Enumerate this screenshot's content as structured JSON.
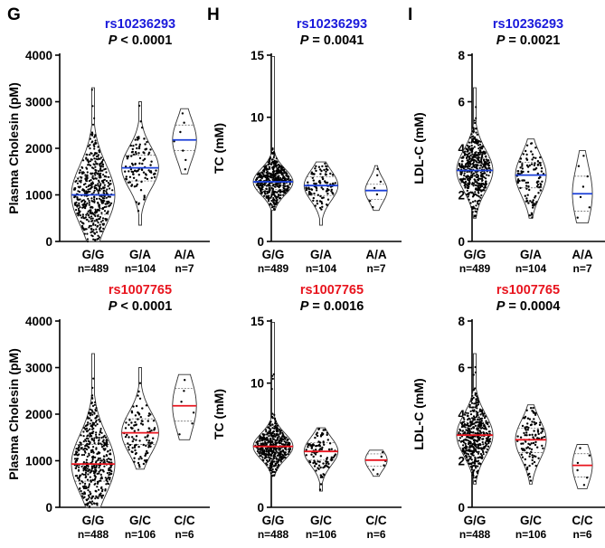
{
  "panel_letters": {
    "G": "G",
    "H": "H",
    "I": "I"
  },
  "colors": {
    "top_snp": "#1a1adb",
    "bottom_snp": "#e8141e",
    "top_median": "#1a3fd8",
    "bottom_median": "#e8141e"
  },
  "chart_data": [
    {
      "type": "violin",
      "panel": "G",
      "snp": "rs10236293",
      "snp_color": "#1a1adb",
      "p_label": "P",
      "p_text": " < 0.0001",
      "ylabel": "Plasma Cholesin (pM)",
      "ylim": [
        0,
        4000
      ],
      "yticks": [
        0,
        1000,
        2000,
        3000,
        4000
      ],
      "categories": [
        "G/G",
        "G/A",
        "A/A"
      ],
      "n_labels": [
        "n=489",
        "n=104",
        "n=7"
      ],
      "n": [
        489,
        104,
        7
      ],
      "medians": [
        1000,
        1580,
        2180
      ],
      "q1": [
        580,
        1300,
        1950
      ],
      "q3": [
        1380,
        1850,
        2500
      ],
      "mins": [
        0,
        350,
        1450
      ],
      "maxs": [
        3300,
        3000,
        2850
      ]
    },
    {
      "type": "violin",
      "panel": "H",
      "snp": "rs10236293",
      "snp_color": "#1a1adb",
      "p_label": "P",
      "p_text": " = 0.0041",
      "ylabel": "TC (mM)",
      "ylim": [
        0,
        15
      ],
      "yticks": [
        0,
        5,
        10,
        15
      ],
      "categories": [
        "G/G",
        "G/A",
        "A/A"
      ],
      "n_labels": [
        "n=489",
        "n=104",
        "n=7"
      ],
      "n": [
        489,
        104,
        7
      ],
      "medians": [
        4.8,
        4.5,
        4.1
      ],
      "q1": [
        4.2,
        3.7,
        3.4
      ],
      "q3": [
        5.5,
        5.2,
        4.6
      ],
      "mins": [
        2.5,
        1.3,
        2.5
      ],
      "maxs": [
        14.9,
        6.4,
        6.1
      ]
    },
    {
      "type": "violin",
      "panel": "I",
      "snp": "rs10236293",
      "snp_color": "#1a1adb",
      "p_label": "P",
      "p_text": " = 0.0021",
      "ylabel": "LDL-C (mM)",
      "ylim": [
        0,
        8
      ],
      "yticks": [
        0,
        2,
        4,
        6,
        8
      ],
      "categories": [
        "G/G",
        "G/A",
        "A/A"
      ],
      "n_labels": [
        "n=489",
        "n=104",
        "n=7"
      ],
      "n": [
        489,
        104,
        7
      ],
      "medians": [
        3.05,
        2.85,
        2.05
      ],
      "q1": [
        2.5,
        2.3,
        1.3
      ],
      "q3": [
        3.6,
        3.4,
        2.8
      ],
      "mins": [
        1.0,
        1.0,
        0.8
      ],
      "maxs": [
        6.6,
        4.4,
        3.9
      ]
    },
    {
      "type": "violin",
      "panel": "G",
      "snp": "rs1007765",
      "snp_color": "#e8141e",
      "p_label": "P",
      "p_text": " < 0.0001",
      "ylabel": "Plasma Cholesin (pM)",
      "ylim": [
        0,
        4000
      ],
      "yticks": [
        0,
        1000,
        2000,
        3000,
        4000
      ],
      "categories": [
        "G/G",
        "G/C",
        "C/C"
      ],
      "n_labels": [
        "n=488",
        "n=106",
        "n=6"
      ],
      "n": [
        488,
        106,
        6
      ],
      "medians": [
        930,
        1600,
        2180
      ],
      "q1": [
        560,
        1350,
        1850
      ],
      "q3": [
        1350,
        1900,
        2550
      ],
      "mins": [
        0,
        820,
        1450
      ],
      "maxs": [
        3300,
        3000,
        2850
      ]
    },
    {
      "type": "violin",
      "panel": "H",
      "snp": "rs1007765",
      "snp_color": "#e8141e",
      "p_label": "P",
      "p_text": " = 0.0016",
      "ylabel": "TC (mM)",
      "ylim": [
        0,
        15
      ],
      "yticks": [
        0,
        5,
        10,
        15
      ],
      "categories": [
        "G/G",
        "G/C",
        "C/C"
      ],
      "n_labels": [
        "n=488",
        "n=106",
        "n=6"
      ],
      "n": [
        488,
        106,
        6
      ],
      "medians": [
        4.9,
        4.5,
        3.8
      ],
      "q1": [
        4.3,
        3.8,
        3.3
      ],
      "q3": [
        5.6,
        5.2,
        4.3
      ],
      "mins": [
        2.5,
        1.3,
        2.5
      ],
      "maxs": [
        14.9,
        6.4,
        4.6
      ]
    },
    {
      "type": "violin",
      "panel": "I",
      "snp": "rs1007765",
      "snp_color": "#e8141e",
      "p_label": "P",
      "p_text": " = 0.0004",
      "ylabel": "LDL-C (mM)",
      "ylim": [
        0,
        8
      ],
      "yticks": [
        0,
        2,
        4,
        6,
        8
      ],
      "categories": [
        "G/G",
        "G/C",
        "C/C"
      ],
      "n_labels": [
        "n=488",
        "n=106",
        "n=6"
      ],
      "n": [
        488,
        106,
        6
      ],
      "medians": [
        3.1,
        2.9,
        1.8
      ],
      "q1": [
        2.55,
        2.35,
        1.3
      ],
      "q3": [
        3.65,
        3.4,
        2.3
      ],
      "mins": [
        1.0,
        1.0,
        0.8
      ],
      "maxs": [
        6.6,
        4.4,
        2.7
      ]
    }
  ]
}
